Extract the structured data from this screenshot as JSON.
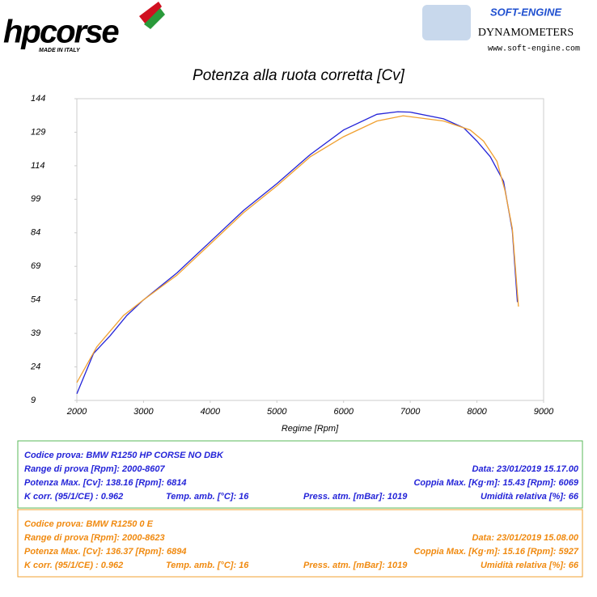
{
  "header": {
    "brand": "hpcorse",
    "brand_tagline": "MADE IN ITALY",
    "maker": "SOFT-ENGINE",
    "maker_product": "DYNAMOMETERS",
    "maker_site": "www.soft-engine.com"
  },
  "chart_data": {
    "type": "line",
    "title": "Potenza alla ruota corretta [Cv]",
    "x_label": "Regime [Rpm]",
    "xlim": [
      2000,
      9000
    ],
    "xticks": [
      2000,
      3000,
      4000,
      5000,
      6000,
      7000,
      8000,
      9000
    ],
    "ylim": [
      9,
      144
    ],
    "yticks": [
      9,
      24,
      39,
      54,
      69,
      84,
      99,
      114,
      129,
      144
    ],
    "series": [
      {
        "color": "#2424d8",
        "x": [
          2000,
          2250,
          2500,
          2750,
          3000,
          3500,
          4000,
          4500,
          5000,
          5500,
          6000,
          6500,
          6814,
          7000,
          7500,
          7800,
          8000,
          8200,
          8400,
          8530,
          8607
        ],
        "values": [
          12,
          30,
          38,
          47,
          54,
          66,
          80,
          94,
          106,
          119,
          130,
          137,
          138.16,
          138,
          135,
          131,
          125,
          118,
          107,
          85,
          53
        ]
      },
      {
        "color": "#f0a030",
        "x": [
          2000,
          2300,
          2700,
          3000,
          3500,
          4000,
          4500,
          5000,
          5500,
          6000,
          6500,
          6894,
          7500,
          7900,
          8100,
          8300,
          8420,
          8530,
          8623
        ],
        "values": [
          17,
          33,
          47,
          54,
          65,
          79,
          93,
          105,
          118,
          127,
          134,
          136.37,
          134,
          130,
          125,
          116,
          103,
          86,
          51
        ]
      }
    ]
  },
  "info": [
    {
      "color": "#2424d8",
      "rows": [
        [
          "Codice prova: BMW R1250 HP CORSE NO DBK"
        ],
        [
          "Range di prova [Rpm]: 2000-8607",
          "Data: 23/01/2019  15.17.00"
        ],
        [
          "Potenza Max. [Cv]: 138.16  [Rpm]: 6814",
          "Coppia Max. [Kg·m]: 15.43  [Rpm]: 6069"
        ],
        [
          "K corr. (95/1/CE) : 0.962",
          "Temp. amb. [°C]: 16",
          "Press. atm. [mBar]: 1019",
          "Umidità relativa [%]: 66"
        ]
      ]
    },
    {
      "color": "#f08a10",
      "rows": [
        [
          "Codice prova: BMW R1250 0 E"
        ],
        [
          "Range di prova [Rpm]: 2000-8623",
          "Data: 23/01/2019  15.08.00"
        ],
        [
          "Potenza Max. [Cv]: 136.37  [Rpm]: 6894",
          "Coppia Max. [Kg·m]: 15.16  [Rpm]: 5927"
        ],
        [
          "K corr. (95/1/CE) : 0.962",
          "Temp. amb. [°C]: 16",
          "Press. atm. [mBar]: 1019",
          "Umidità relativa [%]: 66"
        ]
      ]
    }
  ]
}
